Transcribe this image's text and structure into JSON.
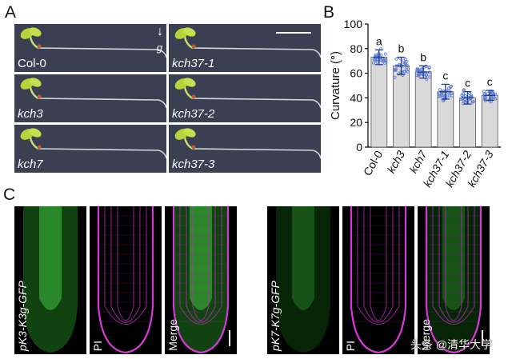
{
  "panel_a": {
    "letter": "A",
    "gravity_label": "g",
    "photos": [
      {
        "label": "Col-0",
        "italic": false
      },
      {
        "label": "kch37-1",
        "italic": true
      },
      {
        "label": "kch3",
        "italic": true
      },
      {
        "label": "kch37-2",
        "italic": true
      },
      {
        "label": "kch7",
        "italic": true
      },
      {
        "label": "kch37-3",
        "italic": true
      }
    ]
  },
  "panel_b": {
    "letter": "B"
  },
  "chart_data": {
    "type": "bar",
    "categories": [
      "Col-0",
      "kch3",
      "kch7",
      "kch37-1",
      "kch37-2",
      "kch37-3"
    ],
    "values": [
      73,
      66,
      61,
      45,
      40,
      42
    ],
    "errors": [
      6,
      7,
      5,
      6,
      5,
      4
    ],
    "significance": [
      "a",
      "b",
      "b",
      "c",
      "c",
      "c"
    ],
    "ylabel": "Curvature (°)",
    "xlabel": "",
    "ylim": [
      0,
      100
    ],
    "yticks": [
      0,
      20,
      40,
      60,
      80,
      100
    ],
    "colors": {
      "bar": "#d9d9d9",
      "points": "#5b7bd5",
      "errorbar": "#1f3a8a"
    }
  },
  "panel_c": {
    "letter": "C",
    "images": [
      {
        "label": "pK3-K3g-GFP",
        "italic": true,
        "channel": "gfp"
      },
      {
        "label": "PI",
        "italic": false,
        "channel": "pi"
      },
      {
        "label": "Merge",
        "italic": false,
        "channel": "merge"
      },
      {
        "label": "pK7-K7g-GFP",
        "italic": true,
        "channel": "gfp-weak"
      },
      {
        "label": "PI",
        "italic": false,
        "channel": "pi"
      },
      {
        "label": "Merge",
        "italic": false,
        "channel": "merge-weak"
      }
    ],
    "watermark": "头条 @清华大学"
  }
}
